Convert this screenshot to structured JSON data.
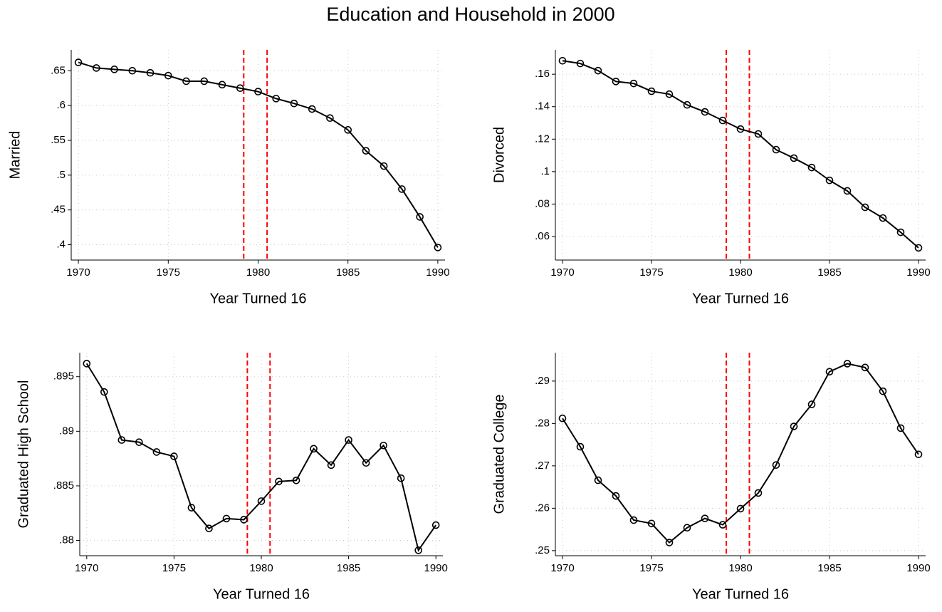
{
  "title": "Education and Household in 2000",
  "chart_data": [
    {
      "type": "line",
      "xlabel": "Year Turned 16",
      "ylabel": "Married",
      "x": [
        1970,
        1971,
        1972,
        1973,
        1974,
        1975,
        1976,
        1977,
        1978,
        1979,
        1980,
        1981,
        1982,
        1983,
        1984,
        1985,
        1986,
        1987,
        1988,
        1989,
        1990
      ],
      "series": [
        {
          "color": "#000000",
          "values": [
            0.662,
            0.654,
            0.652,
            0.65,
            0.647,
            0.643,
            0.635,
            0.635,
            0.63,
            0.625,
            0.62,
            0.61,
            0.603,
            0.595,
            0.582,
            0.565,
            0.535,
            0.513,
            0.48,
            0.44,
            0.396
          ]
        }
      ],
      "xlim": [
        1969.6,
        1990.4
      ],
      "xticks": [
        1970,
        1975,
        1980,
        1985,
        1990
      ],
      "ylim": [
        0.378,
        0.68
      ],
      "yticks": [
        {
          "value": 0.4,
          "label": ".4"
        },
        {
          "value": 0.45,
          "label": ".45"
        },
        {
          "value": 0.5,
          "label": ".5"
        },
        {
          "value": 0.55,
          "label": ".55"
        },
        {
          "value": 0.6,
          "label": ".6"
        },
        {
          "value": 0.65,
          "label": ".65"
        }
      ],
      "reference_lines": {
        "x": [
          1979.2,
          1980.5
        ],
        "color": "#ff0000"
      },
      "grid": true
    },
    {
      "type": "line",
      "xlabel": "Year Turned 16",
      "ylabel": "Divorced",
      "x": [
        1970,
        1971,
        1972,
        1973,
        1974,
        1975,
        1976,
        1977,
        1978,
        1979,
        1980,
        1981,
        1982,
        1983,
        1984,
        1985,
        1986,
        1987,
        1988,
        1989,
        1990
      ],
      "series": [
        {
          "color": "#000000",
          "values": [
            0.1683,
            0.1666,
            0.1622,
            0.1555,
            0.1543,
            0.1495,
            0.1477,
            0.1411,
            0.1368,
            0.1315,
            0.1262,
            0.1232,
            0.1135,
            0.1083,
            0.1025,
            0.0946,
            0.0881,
            0.078,
            0.0714,
            0.0626,
            0.053
          ]
        }
      ],
      "xlim": [
        1969.6,
        1990.4
      ],
      "xticks": [
        1970,
        1975,
        1980,
        1985,
        1990
      ],
      "ylim": [
        0.0455,
        0.175
      ],
      "yticks": [
        {
          "value": 0.06,
          "label": ".06"
        },
        {
          "value": 0.08,
          "label": ".08"
        },
        {
          "value": 0.1,
          "label": ".1"
        },
        {
          "value": 0.12,
          "label": ".12"
        },
        {
          "value": 0.14,
          "label": ".14"
        },
        {
          "value": 0.16,
          "label": ".16"
        }
      ],
      "reference_lines": {
        "x": [
          1979.2,
          1980.5
        ],
        "color": "#ff0000"
      },
      "grid": true
    },
    {
      "type": "line",
      "xlabel": "Year Turned 16",
      "ylabel": "Graduated High School",
      "x": [
        1970,
        1971,
        1972,
        1973,
        1974,
        1975,
        1976,
        1977,
        1978,
        1979,
        1980,
        1981,
        1982,
        1983,
        1984,
        1985,
        1986,
        1987,
        1988,
        1989,
        1990
      ],
      "series": [
        {
          "color": "#000000",
          "values": [
            0.8962,
            0.8936,
            0.8892,
            0.889,
            0.8881,
            0.8877,
            0.883,
            0.8811,
            0.882,
            0.8819,
            0.8836,
            0.8854,
            0.8855,
            0.8884,
            0.8869,
            0.8892,
            0.8871,
            0.8887,
            0.8857,
            0.8791,
            0.8814
          ]
        }
      ],
      "xlim": [
        1969.6,
        1990.4
      ],
      "xticks": [
        1970,
        1975,
        1980,
        1985,
        1990
      ],
      "ylim": [
        0.8786,
        0.8972
      ],
      "yticks": [
        {
          "value": 0.88,
          "label": ".88"
        },
        {
          "value": 0.885,
          "label": ".885"
        },
        {
          "value": 0.89,
          "label": ".89"
        },
        {
          "value": 0.895,
          "label": ".895"
        }
      ],
      "reference_lines": {
        "x": [
          1979.2,
          1980.5
        ],
        "color": "#ff0000"
      },
      "grid": true
    },
    {
      "type": "line",
      "xlabel": "Year Turned 16",
      "ylabel": "Graduated College",
      "x": [
        1970,
        1971,
        1972,
        1973,
        1974,
        1975,
        1976,
        1977,
        1978,
        1979,
        1980,
        1981,
        1982,
        1983,
        1984,
        1985,
        1986,
        1987,
        1988,
        1989,
        1990
      ],
      "series": [
        {
          "color": "#000000",
          "values": [
            0.2812,
            0.2745,
            0.2666,
            0.2629,
            0.2572,
            0.2564,
            0.2519,
            0.2554,
            0.2576,
            0.2561,
            0.2599,
            0.2636,
            0.2702,
            0.2793,
            0.2845,
            0.2922,
            0.2941,
            0.2932,
            0.2876,
            0.2789,
            0.2727
          ]
        }
      ],
      "xlim": [
        1969.6,
        1990.4
      ],
      "xticks": [
        1970,
        1975,
        1980,
        1985,
        1990
      ],
      "ylim": [
        0.2488,
        0.2967
      ],
      "yticks": [
        {
          "value": 0.25,
          "label": ".25"
        },
        {
          "value": 0.26,
          "label": ".26"
        },
        {
          "value": 0.27,
          "label": ".27"
        },
        {
          "value": 0.28,
          "label": ".28"
        },
        {
          "value": 0.29,
          "label": ".29"
        }
      ],
      "reference_lines": {
        "x": [
          1979.2,
          1980.5
        ],
        "color": "#ff0000"
      },
      "grid": true
    }
  ]
}
